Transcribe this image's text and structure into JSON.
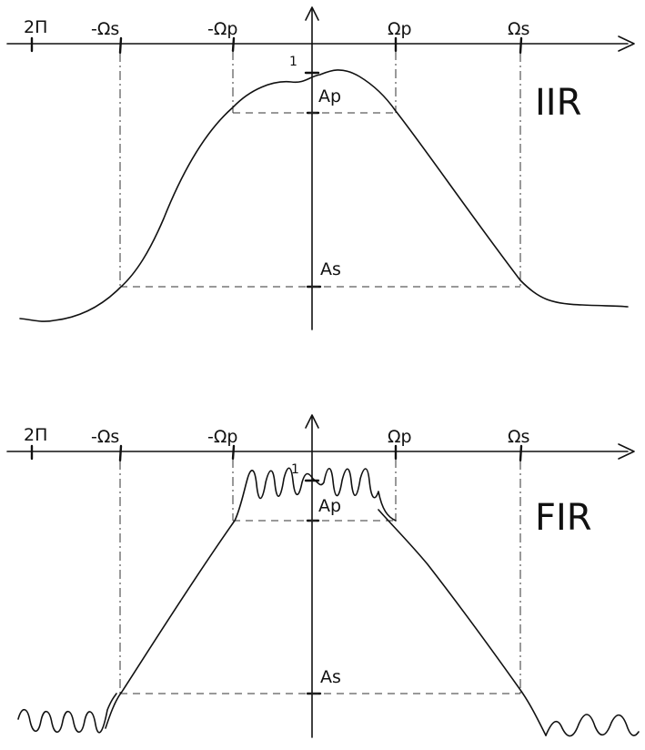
{
  "panels": [
    {
      "id": "iir",
      "title": "IIR",
      "labels": {
        "t2pi": "2Π",
        "neg_omega_s": "-Ωs",
        "neg_omega_p": "-Ωp",
        "omega_p": "Ωp",
        "omega_s": "Ωs",
        "one": "1",
        "ap": "Ap",
        "as": "As"
      }
    },
    {
      "id": "fir",
      "title": "FIR",
      "labels": {
        "t2pi": "2Π",
        "neg_omega_s": "-Ωs",
        "neg_omega_p": "-Ωp",
        "omega_p": "Ωp",
        "omega_s": "Ωs",
        "one": "1",
        "ap": "Ap",
        "as": "As"
      }
    }
  ]
}
